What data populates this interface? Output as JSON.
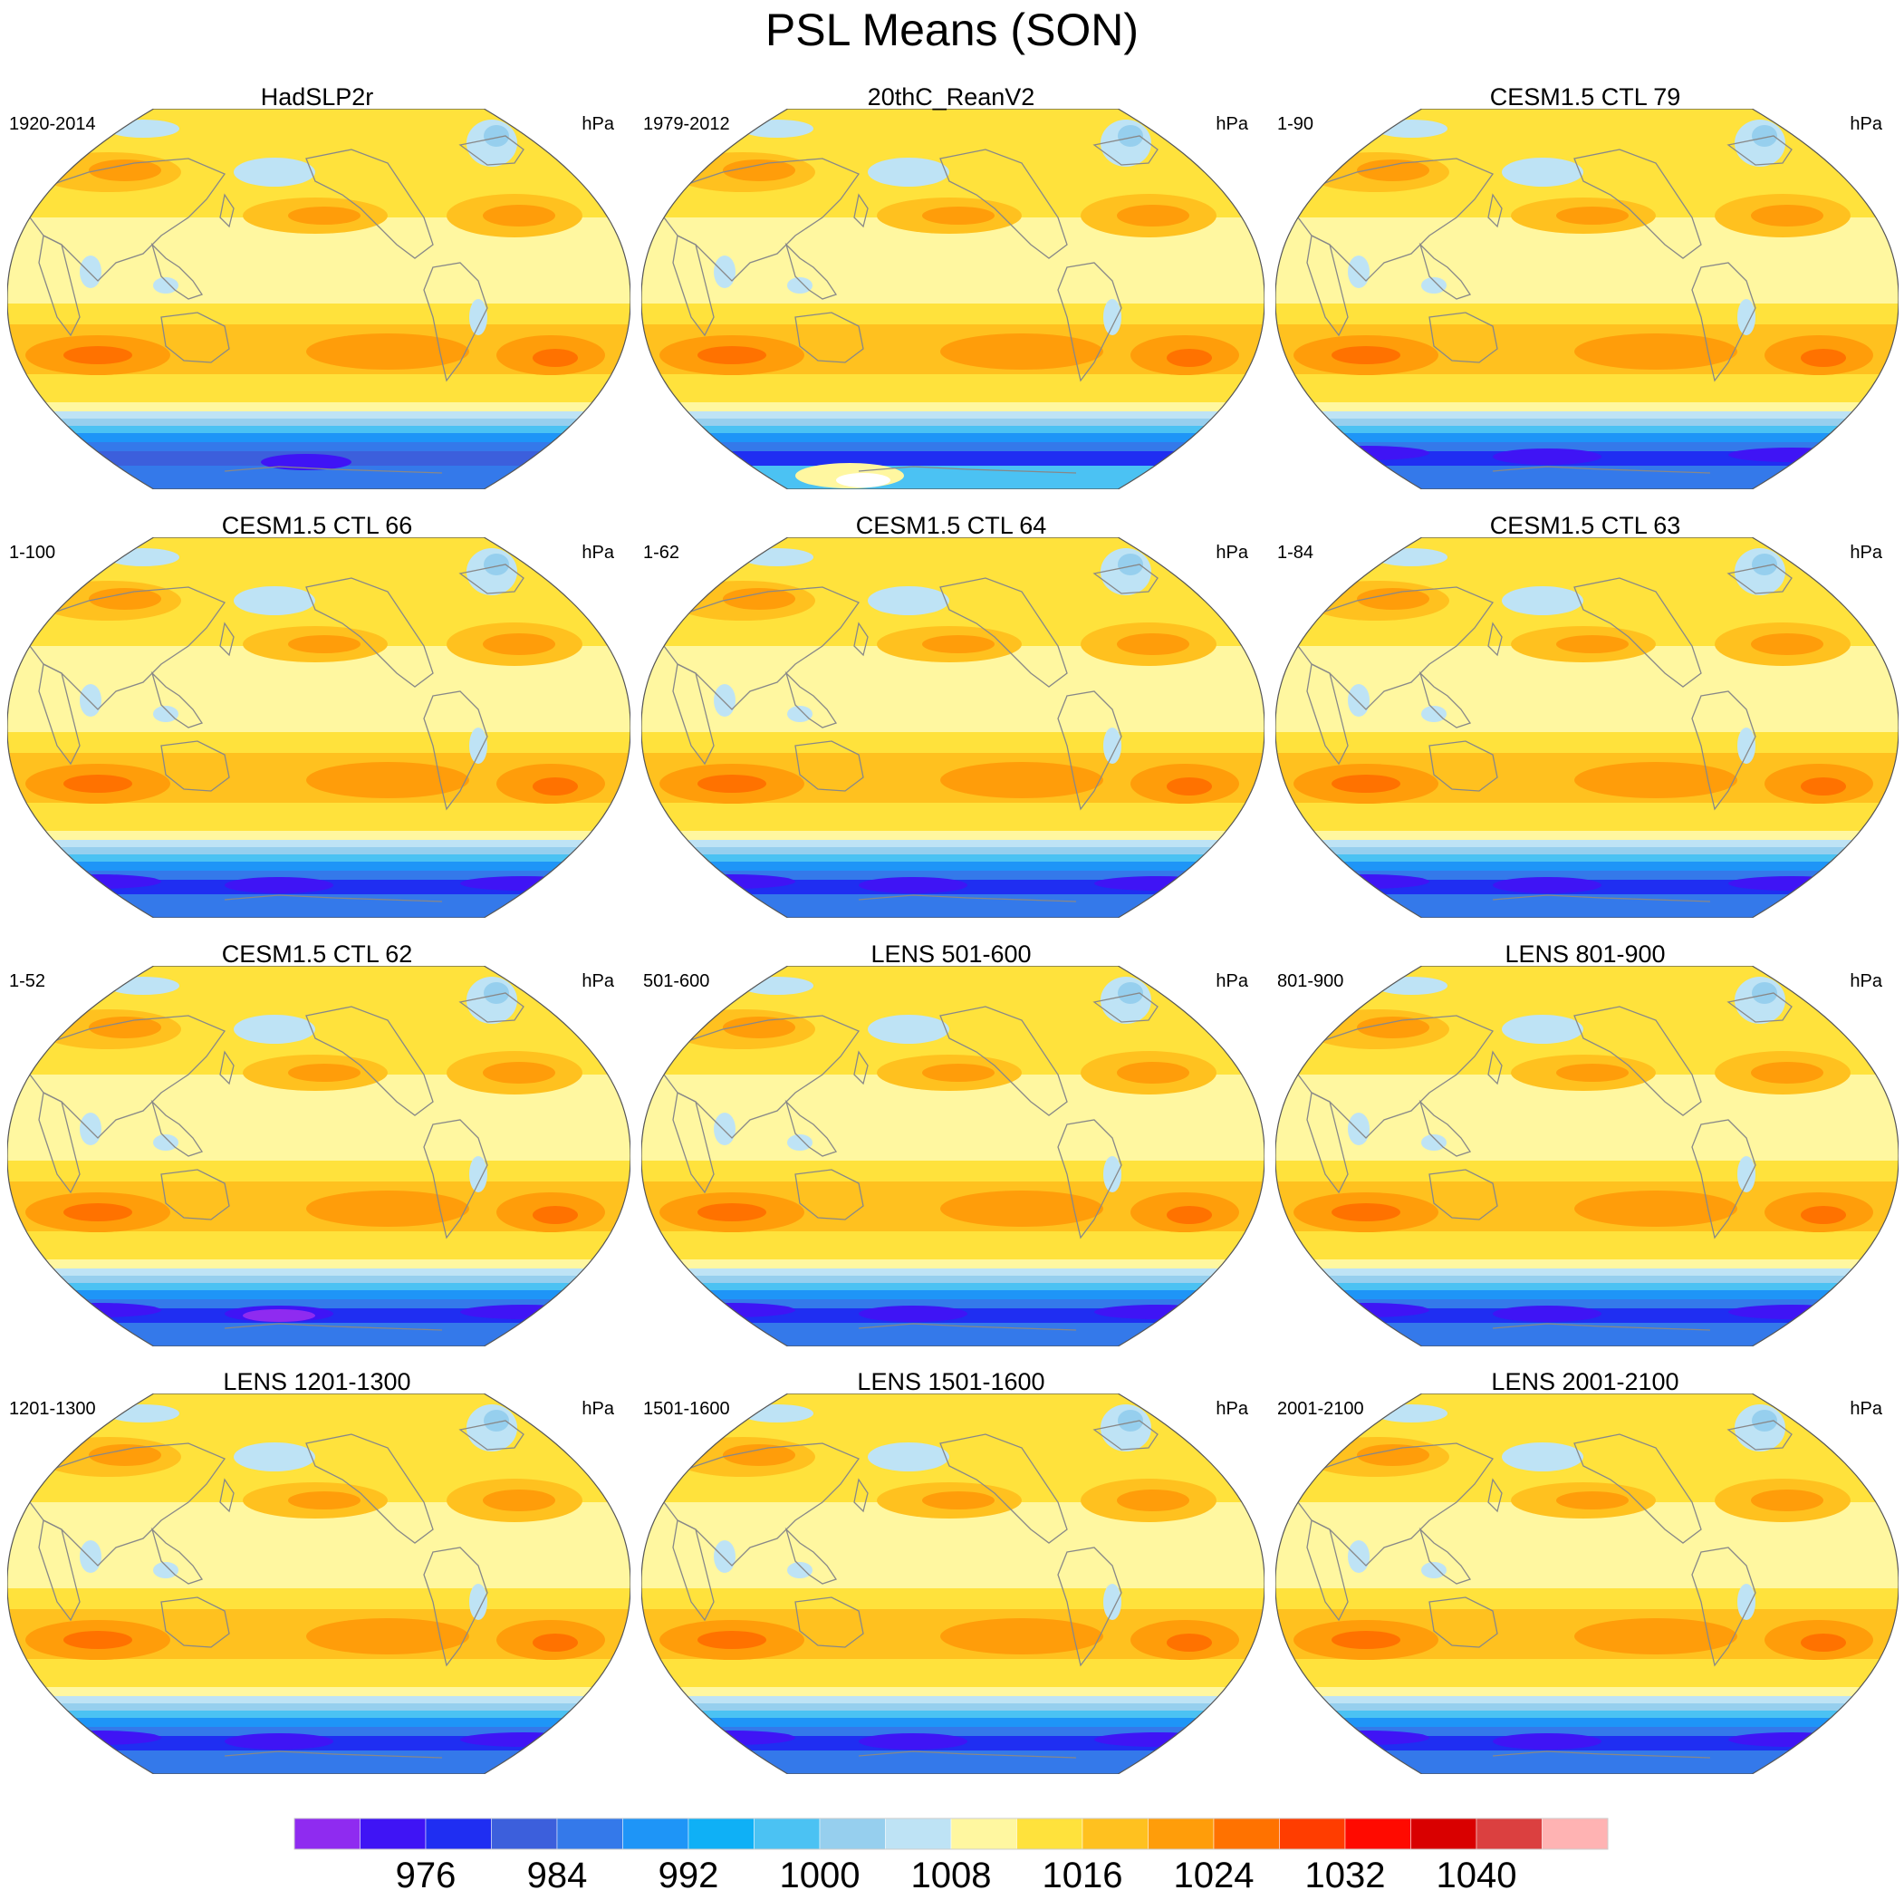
{
  "title": "PSL Means (SON)",
  "colors": {
    "levels": [
      "#8f2bf0",
      "#3f14f5",
      "#1f2ef2",
      "#3c5fdc",
      "#3479ea",
      "#1e95f7",
      "#0fb0f6",
      "#4bc2f3",
      "#96cfee",
      "#bee3f5",
      "#fff7a0",
      "#ffe23c",
      "#ffc11f",
      "#ff9d0a",
      "#ff7200",
      "#ff3d00",
      "#ff0a00",
      "#d90000",
      "#db4040",
      "#ffb3b3"
    ],
    "coast": "#888888"
  },
  "chart_data": {
    "type": "heatmap",
    "projection": "Robinson",
    "variable_unit": "hPa",
    "colorbar": {
      "tick_labels": [
        "976",
        "984",
        "992",
        "1000",
        "1008",
        "1016",
        "1024",
        "1032",
        "1040"
      ],
      "levels": [
        976,
        980,
        984,
        988,
        992,
        996,
        1000,
        1004,
        1008,
        1012,
        1016,
        1020,
        1024,
        1028,
        1032,
        1036,
        1040,
        1044
      ]
    },
    "panels": [
      {
        "title": "HadSLP2r",
        "period": "1920-2014",
        "unit": "hPa",
        "antarctic": "weak"
      },
      {
        "title": "20thC_ReanV2",
        "period": "1979-2012",
        "unit": "hPa",
        "antarctic": "rean"
      },
      {
        "title": "CESM1.5 CTL 79",
        "period": "1-90",
        "unit": "hPa",
        "antarctic": "deep"
      },
      {
        "title": "CESM1.5 CTL 66",
        "period": "1-100",
        "unit": "hPa",
        "antarctic": "deep"
      },
      {
        "title": "CESM1.5 CTL 64",
        "period": "1-62",
        "unit": "hPa",
        "antarctic": "deep"
      },
      {
        "title": "CESM1.5 CTL 63",
        "period": "1-84",
        "unit": "hPa",
        "antarctic": "deep"
      },
      {
        "title": "CESM1.5 CTL 62",
        "period": "1-52",
        "unit": "hPa",
        "antarctic": "deepest"
      },
      {
        "title": "LENS 501-600",
        "period": "501-600",
        "unit": "hPa",
        "antarctic": "deep"
      },
      {
        "title": "LENS 801-900",
        "period": "801-900",
        "unit": "hPa",
        "antarctic": "deep"
      },
      {
        "title": "LENS 1201-1300",
        "period": "1201-1300",
        "unit": "hPa",
        "antarctic": "deep"
      },
      {
        "title": "LENS 1501-1600",
        "period": "1501-1600",
        "unit": "hPa",
        "antarctic": "deep"
      },
      {
        "title": "LENS 2001-2100",
        "period": "2001-2100",
        "unit": "hPa",
        "antarctic": "deep"
      }
    ]
  }
}
